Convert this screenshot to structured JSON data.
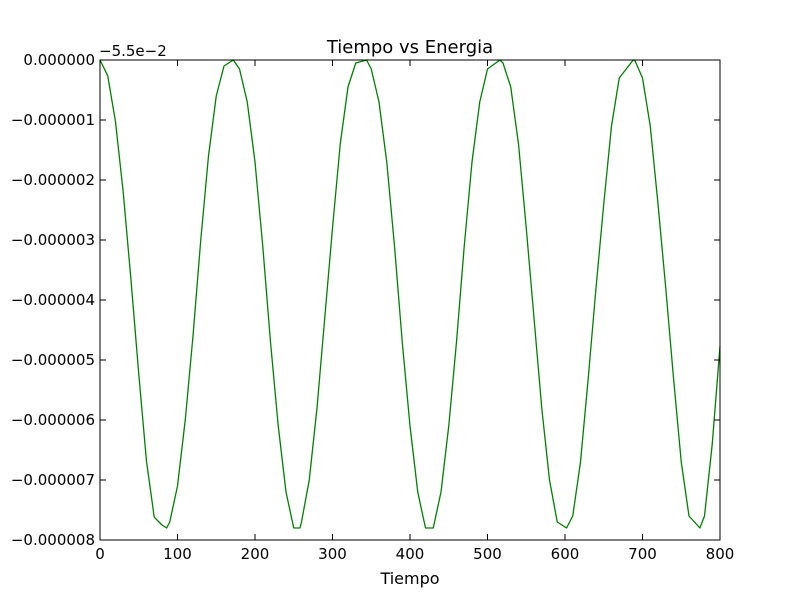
{
  "chart_data": {
    "type": "line",
    "title": "Tiempo vs Energia",
    "xlabel": "Tiempo",
    "ylabel": "",
    "offset_label": "−5.5e−2",
    "xlim": [
      0,
      800
    ],
    "ylim": [
      -8e-06,
      0.0
    ],
    "xticks": [
      0,
      100,
      200,
      300,
      400,
      500,
      600,
      700,
      800
    ],
    "xtick_labels": [
      "0",
      "100",
      "200",
      "300",
      "400",
      "500",
      "600",
      "700",
      "800"
    ],
    "yticks": [
      0.0,
      -1e-06,
      -2e-06,
      -3e-06,
      -4e-06,
      -5e-06,
      -6e-06,
      -7e-06,
      -8e-06
    ],
    "ytick_labels": [
      "0.000000",
      "−0.000001",
      "−0.000002",
      "−0.000003",
      "−0.000004",
      "−0.000005",
      "−0.000006",
      "−0.000007",
      "−0.000008"
    ],
    "grid": false,
    "series": [
      {
        "color": "#008000",
        "x": [
          0,
          10,
          20,
          30,
          40,
          50,
          60,
          70,
          80,
          86,
          90,
          100,
          110,
          120,
          130,
          140,
          150,
          160,
          172,
          180,
          190,
          200,
          210,
          220,
          230,
          240,
          250,
          258,
          260,
          270,
          280,
          290,
          300,
          310,
          320,
          330,
          344,
          350,
          360,
          370,
          380,
          390,
          400,
          410,
          420,
          430,
          440,
          450,
          460,
          470,
          480,
          490,
          500,
          516,
          520,
          530,
          540,
          550,
          560,
          570,
          580,
          590,
          602,
          610,
          620,
          630,
          640,
          650,
          660,
          670,
          688,
          690,
          700,
          710,
          720,
          730,
          740,
          750,
          760,
          774,
          780,
          790,
          800
        ],
        "y": [
          0.0,
          -2.64e-07,
          -1.03e-06,
          -2.21e-06,
          -3.67e-06,
          -5.23e-06,
          -6.69e-06,
          -7.62e-06,
          -7.75e-06,
          -7.8e-06,
          -7.7e-06,
          -7.1e-06,
          -6e-06,
          -4.6e-06,
          -3e-06,
          -1.6e-06,
          -6e-07,
          -1e-07,
          0.0,
          -1.5e-07,
          -7e-07,
          -1.7e-06,
          -3.1e-06,
          -4.7e-06,
          -6.1e-06,
          -7.2e-06,
          -7.8e-06,
          -7.8e-06,
          -7.7e-06,
          -7e-06,
          -5.8e-06,
          -4.3e-06,
          -2.8e-06,
          -1.4e-06,
          -4.5e-07,
          -5e-08,
          0.0,
          -1.5e-07,
          -7e-07,
          -1.7e-06,
          -3.1e-06,
          -4.7e-06,
          -6.1e-06,
          -7.2e-06,
          -7.8e-06,
          -7.8e-06,
          -7.2e-06,
          -6.1e-06,
          -4.7e-06,
          -3.1e-06,
          -1.7e-06,
          -7e-07,
          -1.5e-07,
          0.0,
          -5e-08,
          -4.5e-07,
          -1.4e-06,
          -2.8e-06,
          -4.3e-06,
          -5.8e-06,
          -7e-06,
          -7.7e-06,
          -7.8e-06,
          -7.6e-06,
          -6.7e-06,
          -5.3e-06,
          -3.8e-06,
          -2.4e-06,
          -1.1e-06,
          -3e-07,
          0.0,
          -5e-09,
          -3e-07,
          -1.1e-06,
          -2.4e-06,
          -3.8e-06,
          -5.3e-06,
          -6.7e-06,
          -7.6e-06,
          -7.8e-06,
          -7.6e-06,
          -6.4e-06,
          -4.77e-06
        ]
      }
    ]
  }
}
